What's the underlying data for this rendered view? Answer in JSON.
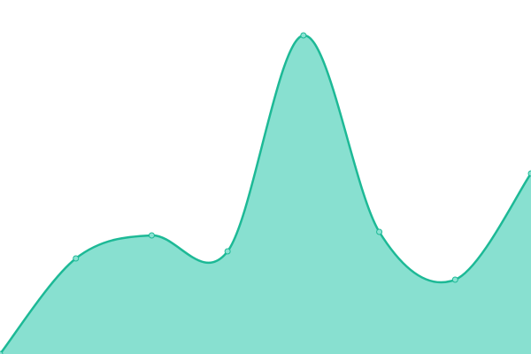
{
  "chart_data": {
    "type": "area",
    "categories": [
      null,
      null,
      null,
      null,
      null,
      null,
      null,
      null
    ],
    "values": [
      0,
      27,
      33.5,
      29,
      90,
      34.5,
      21,
      51
    ],
    "ylim": [
      0,
      100
    ],
    "line_color": "#1db996",
    "fill_color": "#88e0d0",
    "marker_fill": "#8ae2d2"
  }
}
